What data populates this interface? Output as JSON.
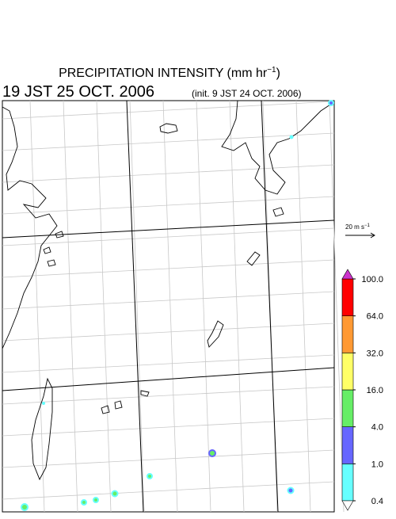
{
  "title": {
    "text": "PRECIPITATION INTENSITY (mm hr",
    "superscript": "−1",
    "close": ")"
  },
  "valid_time": "19 JST 25 OCT. 2006",
  "init_time": "(init. 9 JST 24 OCT. 2006)",
  "vector_legend": {
    "text": "20 m s",
    "superscript": "−1"
  },
  "colorbar": {
    "ticks": [
      {
        "value": 0.4,
        "label": "0.4"
      },
      {
        "value": 1,
        "label": "1.0"
      },
      {
        "value": 4,
        "label": "4.0"
      },
      {
        "value": 16,
        "label": "16.0"
      },
      {
        "value": 32,
        "label": "32.0"
      },
      {
        "value": 64,
        "label": "64.0"
      },
      {
        "value": 100,
        "label": "100.0"
      }
    ],
    "colors": [
      "#66ffff",
      "#6666ff",
      "#66ee66",
      "#ffff66",
      "#ff9933",
      "#ff0000"
    ],
    "under_color": "#ffffff",
    "over_color": "#cc33cc"
  }
}
